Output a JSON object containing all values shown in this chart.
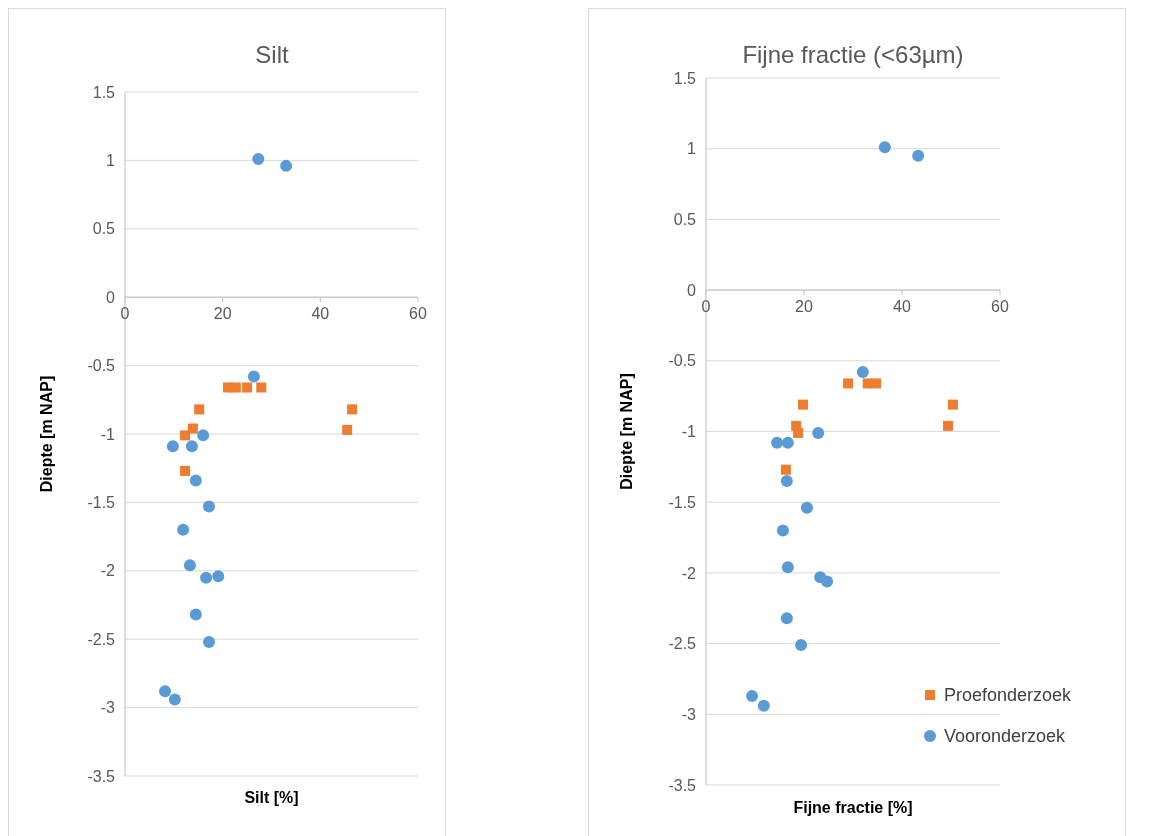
{
  "chart_data": [
    {
      "type": "scatter",
      "title": "Silt",
      "xlabel": "Silt [%]",
      "ylabel": "Diepte [m NAP]",
      "xlim": [
        0,
        60
      ],
      "xticks": [
        0,
        20,
        40,
        60
      ],
      "ylim": [
        -3.5,
        1.5
      ],
      "yticks": [
        -3.5,
        -3,
        -2.5,
        -2,
        -1.5,
        -1,
        -0.5,
        0,
        0.5,
        1,
        1.5
      ],
      "grid": "y",
      "legend": false,
      "series": [
        {
          "color": "#ed7d31",
          "marker": "square",
          "x": [
            21.1,
            22.7,
            25,
            27.9,
            15.2,
            46.5,
            12.3,
            13.9,
            45.5,
            12.3
          ],
          "values": [
            -0.66,
            -0.66,
            -0.66,
            -0.66,
            -0.82,
            -0.82,
            -1.01,
            -0.96,
            -0.97,
            -1.27
          ]
        },
        {
          "color": "#5b9bd5",
          "marker": "circle",
          "x": [
            27.3,
            33,
            26.4,
            16,
            9.8,
            13.7,
            14.5,
            17.2,
            11.9,
            13.3,
            16.6,
            19.1,
            14.5,
            17.2,
            8.2,
            10.2
          ],
          "values": [
            1.01,
            0.96,
            -0.58,
            -1.01,
            -1.09,
            -1.09,
            -1.34,
            -1.53,
            -1.7,
            -1.96,
            -2.05,
            -2.04,
            -2.32,
            -2.52,
            -2.88,
            -2.94
          ]
        }
      ]
    },
    {
      "type": "scatter",
      "title": "Fijne fractie (<63µm)",
      "xlabel": "Fijne fractie [%]",
      "ylabel": "Diepte [m NAP]",
      "xlim": [
        0,
        60
      ],
      "xticks": [
        0,
        20,
        40,
        60
      ],
      "ylim": [
        -3.5,
        1.5
      ],
      "yticks": [
        -3.5,
        -3,
        -2.5,
        -2,
        -1.5,
        -1,
        -0.5,
        0,
        0.5,
        1,
        1.5
      ],
      "grid": "y",
      "legend": "bottom right",
      "series": [
        {
          "name": "Proefonderzoek",
          "color": "#ed7d31",
          "marker": "square",
          "x": [
            29,
            33,
            34.7,
            19.8,
            50.4,
            18.4,
            49.4,
            18.8,
            16.3
          ],
          "values": [
            -0.66,
            -0.66,
            -0.66,
            -0.81,
            -0.81,
            -0.96,
            -0.96,
            -1.01,
            -1.27
          ]
        },
        {
          "name": "Vooronderzoek",
          "color": "#5b9bd5",
          "marker": "circle",
          "x": [
            36.5,
            43.3,
            32,
            22.9,
            14.5,
            16.7,
            16.5,
            20.6,
            15.7,
            16.7,
            23.3,
            24.7,
            16.5,
            19.4,
            9.4,
            11.8
          ],
          "values": [
            1.01,
            0.95,
            -0.58,
            -1.01,
            -1.08,
            -1.08,
            -1.35,
            -1.54,
            -1.7,
            -1.96,
            -2.03,
            -2.06,
            -2.32,
            -2.51,
            -2.87,
            -2.94
          ]
        }
      ]
    }
  ]
}
